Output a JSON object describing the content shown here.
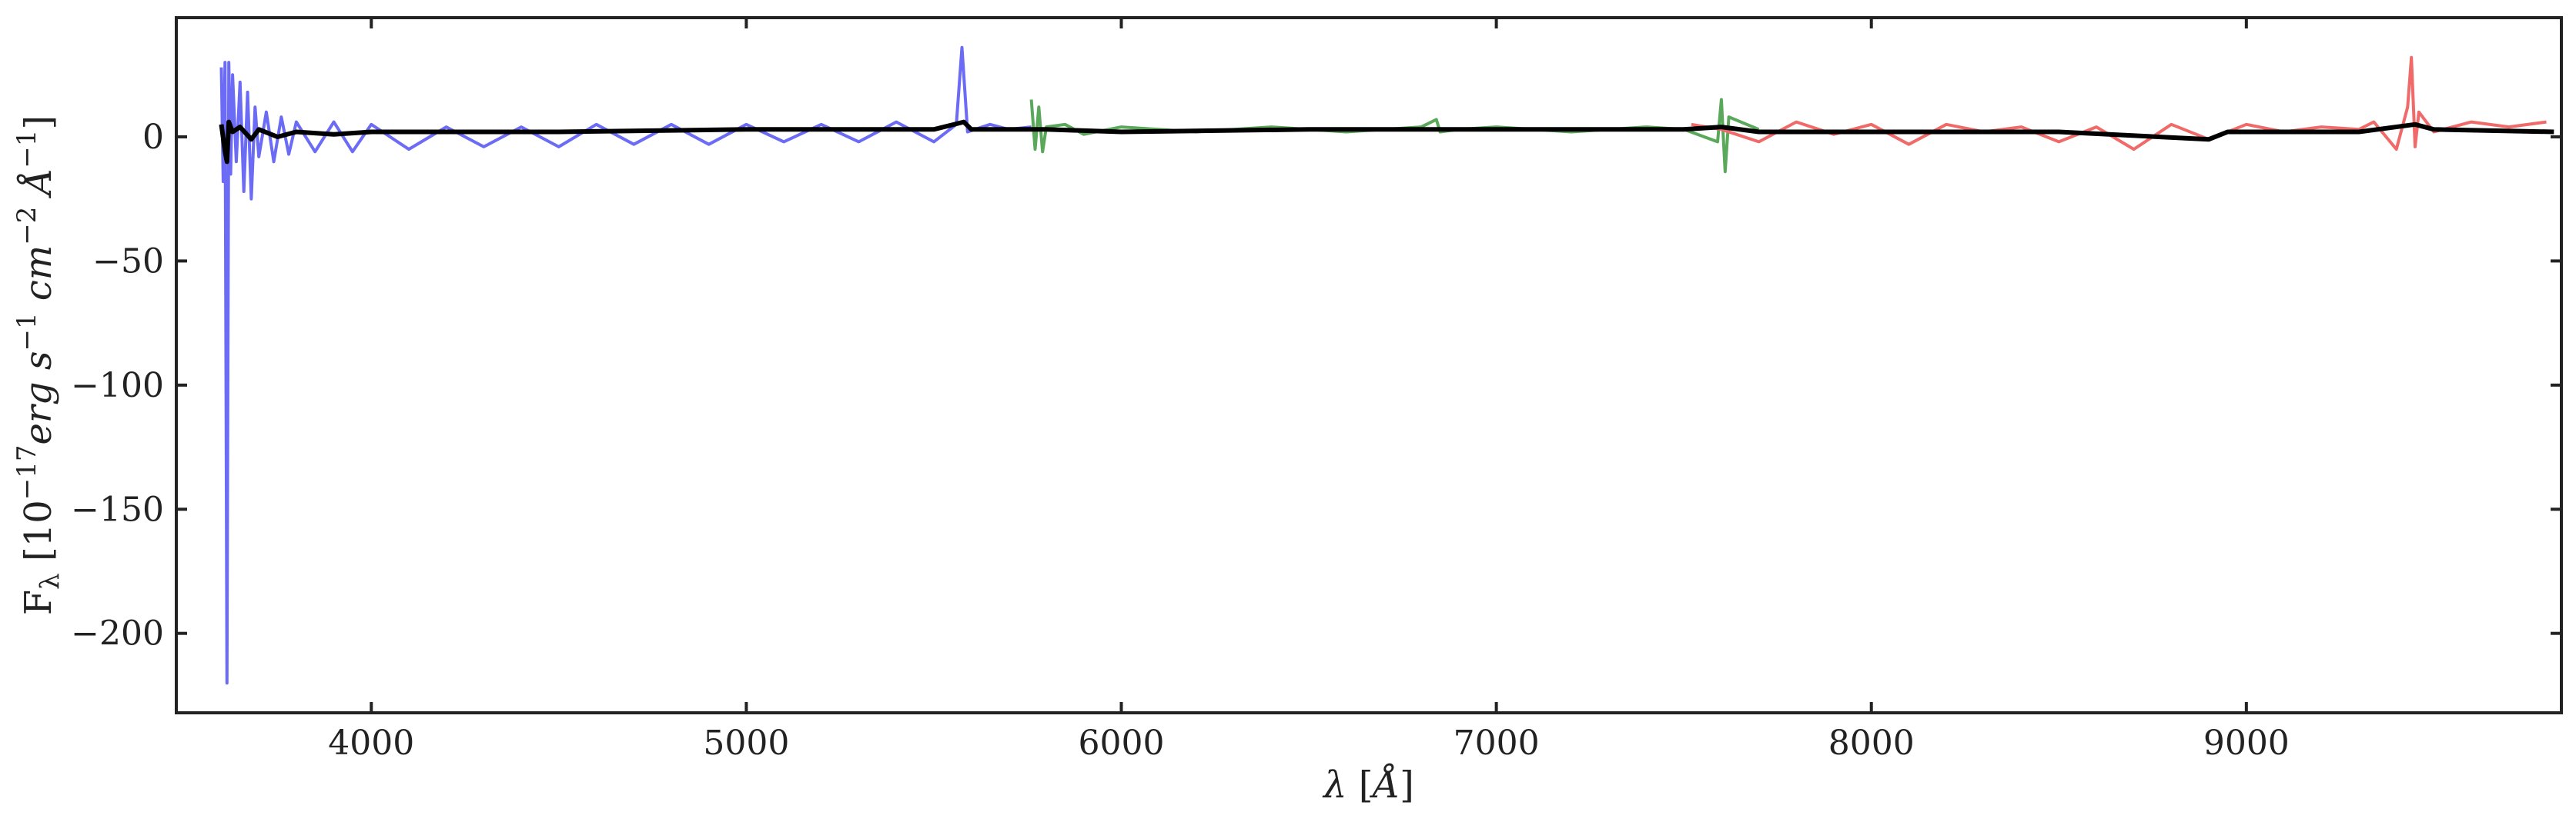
{
  "chart_data": {
    "type": "line",
    "title": "",
    "xlabel": "λ [Å]",
    "ylabel": "F_λ [10^{-17} erg s^{-1} cm^{-2} Å^{-1}]",
    "xlim": [
      3480,
      9840
    ],
    "ylim": [
      -232,
      48
    ],
    "xticks": [
      4000,
      5000,
      6000,
      7000,
      8000,
      9000
    ],
    "yticks": [
      0,
      -50,
      -100,
      -150,
      -200
    ],
    "grid": false,
    "legend": "none",
    "series": [
      {
        "color": "#6b6bf5",
        "x": [
          3600,
          3605,
          3610,
          3615,
          3620,
          3625,
          3630,
          3640,
          3650,
          3660,
          3670,
          3680,
          3690,
          3700,
          3720,
          3740,
          3760,
          3780,
          3800,
          3850,
          3900,
          3950,
          4000,
          4100,
          4200,
          4300,
          4400,
          4500,
          4600,
          4700,
          4800,
          4900,
          5000,
          5100,
          5200,
          5300,
          5400,
          5500,
          5560,
          5575,
          5590,
          5650,
          5700,
          5760
        ],
        "y": [
          28,
          -18,
          30,
          -220,
          30,
          -15,
          25,
          -10,
          22,
          -22,
          18,
          -25,
          12,
          -8,
          10,
          -10,
          8,
          -7,
          6,
          -6,
          6,
          -6,
          5,
          -5,
          4,
          -4,
          4,
          -4,
          5,
          -3,
          5,
          -3,
          5,
          -2,
          5,
          -2,
          6,
          -2,
          5,
          36,
          2,
          5,
          3,
          4
        ]
      },
      {
        "color": "#5aa85a",
        "x": [
          5760,
          5770,
          5780,
          5790,
          5800,
          5850,
          5900,
          6000,
          6200,
          6400,
          6600,
          6800,
          6840,
          6850,
          6900,
          7000,
          7200,
          7400,
          7500,
          7590,
          7600,
          7610,
          7620,
          7700
        ],
        "y": [
          15,
          -5,
          12,
          -6,
          4,
          5,
          1,
          4,
          2,
          4,
          2,
          4,
          7,
          2,
          3,
          4,
          2,
          4,
          3,
          -2,
          15,
          -14,
          8,
          3
        ]
      },
      {
        "color": "#f06a6a",
        "x": [
          7520,
          7600,
          7700,
          7800,
          7900,
          8000,
          8100,
          8200,
          8300,
          8400,
          8500,
          8600,
          8700,
          8800,
          8900,
          9000,
          9100,
          9200,
          9300,
          9340,
          9400,
          9430,
          9440,
          9450,
          9460,
          9500,
          9600,
          9700,
          9800
        ],
        "y": [
          5,
          3,
          -2,
          6,
          1,
          5,
          -3,
          5,
          2,
          4,
          -2,
          4,
          -5,
          5,
          -1,
          5,
          2,
          4,
          3,
          6,
          -5,
          12,
          32,
          -4,
          10,
          2,
          6,
          4,
          6
        ]
      },
      {
        "color": "#000000",
        "x": [
          3600,
          3610,
          3615,
          3620,
          3630,
          3650,
          3680,
          3700,
          3750,
          3800,
          3900,
          4000,
          4500,
          5000,
          5500,
          5580,
          5600,
          5800,
          6000,
          6500,
          7000,
          7500,
          7600,
          7700,
          8000,
          8500,
          8900,
          8950,
          9000,
          9300,
          9450,
          9500,
          9820
        ],
        "y": [
          5,
          -6,
          -10,
          6,
          2,
          4,
          -1,
          3,
          0,
          2,
          1,
          2,
          2,
          3,
          3,
          6,
          3,
          3,
          2,
          3,
          3,
          3,
          4,
          2,
          2,
          2,
          -1,
          2,
          2,
          2,
          5,
          3,
          2
        ]
      }
    ]
  }
}
